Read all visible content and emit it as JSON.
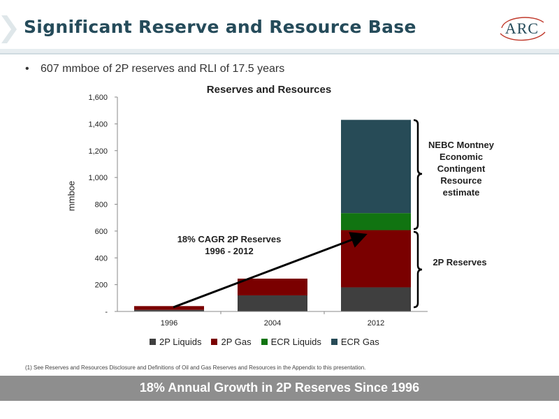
{
  "header": {
    "title": "Significant Reserve and Resource Base",
    "logo_text": "ARC"
  },
  "bullet": "607 mmboe of 2P reserves and RLI of 17.5 years",
  "colors": {
    "title": "#254b5a",
    "2p_liquids": "#3f3f3f",
    "2p_gas": "#7a0000",
    "ecr_liquids": "#117411",
    "ecr_gas": "#274b57",
    "banner": "#8e8e8e"
  },
  "chart_data": {
    "type": "bar",
    "stacked": true,
    "title": "Reserves and Resources",
    "ylabel": "mmboe",
    "xlabel": "",
    "ylim": [
      0,
      1600
    ],
    "yticks": [
      0,
      200,
      400,
      600,
      800,
      1000,
      1200,
      1400,
      1600
    ],
    "ytick_labels": [
      "-",
      "200",
      "400",
      "600",
      "800",
      "1,000",
      "1,200",
      "1,400",
      "1,600"
    ],
    "categories": [
      "1996",
      "2004",
      "2012"
    ],
    "series": [
      {
        "name": "2P Liquids",
        "values": [
          12,
          120,
          180
        ]
      },
      {
        "name": "2P Gas",
        "values": [
          28,
          125,
          427
        ]
      },
      {
        "name": "ECR Liquids",
        "values": [
          0,
          0,
          127
        ]
      },
      {
        "name": "ECR Gas",
        "values": [
          0,
          0,
          696
        ]
      }
    ],
    "grid": false,
    "legend": "bottom",
    "annotations": {
      "cagr": "18% CAGR 2P Reserves 1996 - 2012",
      "ecr_brace": "NEBC Montney Economic Contingent Resource estimate",
      "twop_brace": "2P Reserves"
    }
  },
  "footnote": "(1) See Reserves and Resources Disclosure and Definitions of Oil and Gas Reserves and Resources in the Appendix to this presentation.",
  "banner": "18% Annual Growth in 2P Reserves Since 1996"
}
